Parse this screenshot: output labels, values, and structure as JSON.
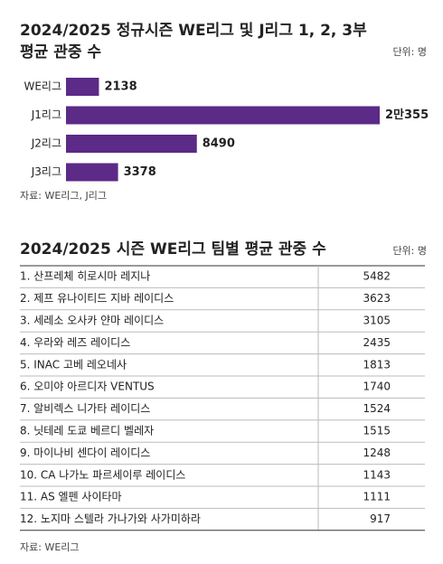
{
  "chart_data": {
    "type": "bar",
    "title": [
      "2024/2025 정규시즌 WE리그 및 J리그 1, 2, 3부",
      "평균 관중 수"
    ],
    "unit": "단위: 명",
    "categories": [
      "WE리그",
      "J1리그",
      "J2리그",
      "J3리그"
    ],
    "values": [
      2138,
      20355,
      8490,
      3378
    ],
    "value_labels": [
      "2138",
      "2만355",
      "8490",
      "3378"
    ],
    "color": "#5c2a87",
    "source": "자료: WE리그, J리그"
  },
  "table": {
    "title": "2024/2025 시즌 WE리그 팀별 평균 관중 수",
    "unit": "단위: 명",
    "rows": [
      [
        "1. 산프레체 히로시마 레지나",
        5482
      ],
      [
        "2. 제프 유나이티드 지바 레이디스",
        3623
      ],
      [
        "3. 세레소 오사카 얀마 레이디스",
        3105
      ],
      [
        "4. 우라와 레즈 레이디스",
        2435
      ],
      [
        "5. INAC 고베 레오네사",
        1813
      ],
      [
        "6. 오미야 아르디자 VENTUS",
        1740
      ],
      [
        "7. 알비렉스 니가타 레이디스",
        1524
      ],
      [
        "8. 닛테레 도쿄 베르디 벨레자",
        1515
      ],
      [
        "9. 마이나비 센다이 레이디스",
        1248
      ],
      [
        "10. CA 나가노 파르세이루 레이디스",
        1143
      ],
      [
        "11. AS 엘펜 사이타마",
        1111
      ],
      [
        "12. 노지마 스텔라 가나가와 사가미하라",
        917
      ]
    ],
    "source": "자료: WE리그"
  }
}
